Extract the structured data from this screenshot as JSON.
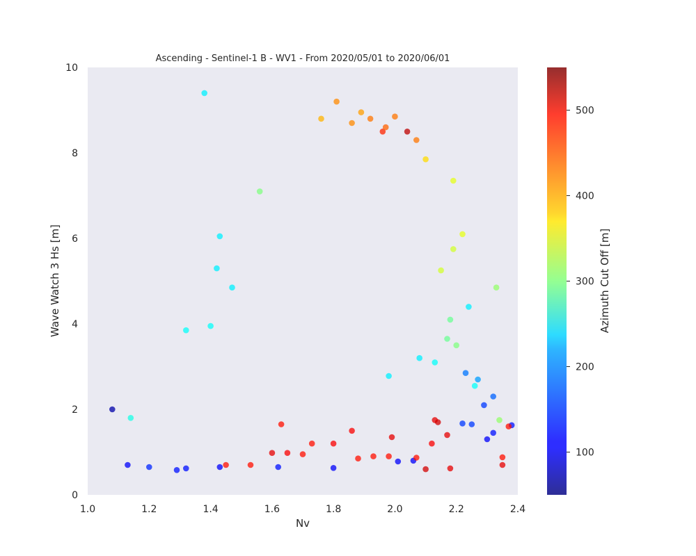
{
  "chart_data": {
    "type": "scatter",
    "title": "Ascending - Sentinel-1 B - WV1 - From 2020/05/01 to 2020/06/01",
    "xlabel": "Nv",
    "ylabel": "Wave Watch 3 Hs [m]",
    "xlim": [
      1.0,
      2.4
    ],
    "ylim": [
      0,
      10
    ],
    "xticks": [
      1.0,
      1.2,
      1.4,
      1.6,
      1.8,
      2.0,
      2.2,
      2.4
    ],
    "yticks": [
      0,
      2,
      4,
      6,
      8,
      10
    ],
    "grid": false,
    "background_color": "#eaeaf2",
    "colormap": "jet",
    "colorbar": {
      "label": "Azimuth Cut Off [m]",
      "range": [
        50,
        550
      ],
      "ticks": [
        100,
        200,
        300,
        400,
        500
      ]
    },
    "marker_alpha": 0.75,
    "series": [
      {
        "points": [
          [
            1.08,
            2.0,
            70
          ],
          [
            1.38,
            9.4,
            230
          ],
          [
            1.81,
            9.2,
            420
          ],
          [
            1.89,
            8.95,
            410
          ],
          [
            1.92,
            8.8,
            430
          ],
          [
            2.0,
            8.85,
            430
          ],
          [
            2.04,
            8.5,
            520
          ],
          [
            1.96,
            8.5,
            470
          ],
          [
            1.97,
            8.6,
            440
          ],
          [
            2.07,
            8.3,
            430
          ],
          [
            1.86,
            8.7,
            420
          ],
          [
            1.76,
            8.8,
            400
          ],
          [
            2.1,
            7.85,
            380
          ],
          [
            2.19,
            7.35,
            350
          ],
          [
            2.22,
            6.1,
            350
          ],
          [
            2.33,
            4.85,
            310
          ],
          [
            2.19,
            5.75,
            340
          ],
          [
            2.15,
            5.25,
            340
          ],
          [
            1.56,
            7.1,
            300
          ],
          [
            2.34,
            1.75,
            310
          ],
          [
            2.24,
            4.4,
            230
          ],
          [
            2.18,
            4.1,
            290
          ],
          [
            2.17,
            3.65,
            290
          ],
          [
            2.2,
            3.5,
            300
          ],
          [
            2.13,
            3.1,
            240
          ],
          [
            1.14,
            1.8,
            250
          ],
          [
            1.32,
            3.85,
            240
          ],
          [
            1.43,
            6.05,
            230
          ],
          [
            1.42,
            5.3,
            230
          ],
          [
            1.47,
            4.85,
            230
          ],
          [
            1.4,
            3.95,
            240
          ],
          [
            2.23,
            2.85,
            170
          ],
          [
            2.27,
            2.7,
            190
          ],
          [
            2.32,
            2.3,
            160
          ],
          [
            2.29,
            2.1,
            140
          ],
          [
            2.38,
            1.63,
            120
          ],
          [
            2.37,
            1.6,
            480
          ],
          [
            2.35,
            0.7,
            500
          ],
          [
            2.32,
            1.45,
            120
          ],
          [
            2.3,
            1.3,
            110
          ],
          [
            2.22,
            1.67,
            140
          ],
          [
            2.25,
            1.65,
            140
          ],
          [
            2.18,
            0.62,
            500
          ],
          [
            2.1,
            0.6,
            510
          ],
          [
            2.06,
            0.8,
            110
          ],
          [
            2.01,
            0.78,
            110
          ],
          [
            1.98,
            0.9,
            480
          ],
          [
            1.93,
            0.9,
            480
          ],
          [
            1.88,
            0.85,
            480
          ],
          [
            1.8,
            0.63,
            110
          ],
          [
            1.43,
            0.65,
            110
          ],
          [
            1.45,
            0.7,
            480
          ],
          [
            1.32,
            0.62,
            120
          ],
          [
            1.29,
            0.58,
            120
          ],
          [
            1.2,
            0.65,
            130
          ],
          [
            1.13,
            0.7,
            110
          ],
          [
            2.13,
            1.75,
            500
          ],
          [
            2.14,
            1.7,
            510
          ],
          [
            2.17,
            1.4,
            500
          ],
          [
            2.12,
            1.2,
            490
          ],
          [
            2.07,
            0.87,
            480
          ],
          [
            1.8,
            1.2,
            490
          ],
          [
            1.73,
            1.2,
            480
          ],
          [
            1.7,
            0.95,
            480
          ],
          [
            1.6,
            0.98,
            500
          ],
          [
            1.53,
            0.7,
            480
          ],
          [
            1.63,
            1.65,
            480
          ],
          [
            1.65,
            0.98,
            490
          ],
          [
            1.86,
            1.5,
            490
          ],
          [
            1.99,
            1.35,
            500
          ],
          [
            2.35,
            0.88,
            480
          ],
          [
            1.62,
            0.65,
            120
          ],
          [
            2.26,
            2.55,
            240
          ],
          [
            1.98,
            2.78,
            230
          ],
          [
            2.08,
            3.2,
            230
          ]
        ]
      }
    ]
  }
}
